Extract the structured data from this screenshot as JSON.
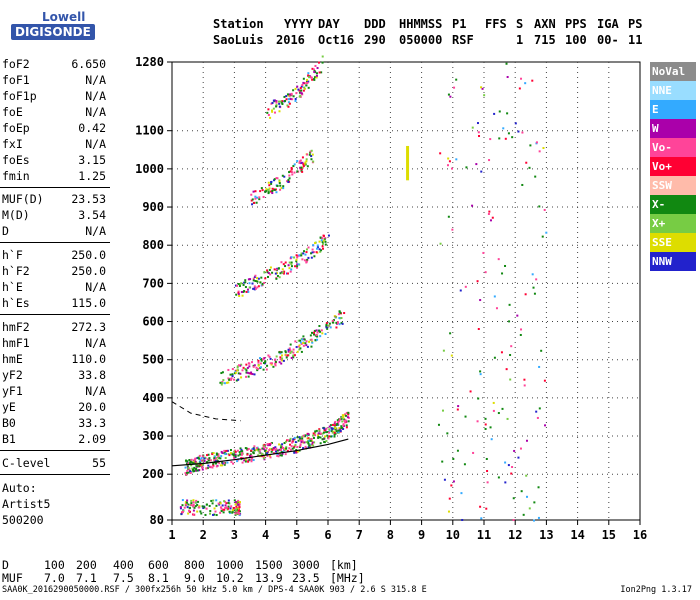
{
  "logo": {
    "top": "Lowell",
    "bottom": "DIGISONDE"
  },
  "header": {
    "labels": [
      "Station",
      "YYYY",
      "DAY",
      "DDD",
      "HHMMSS",
      "P1",
      "FFS",
      "S",
      "AXN",
      "PPS",
      "IGA",
      "PS"
    ],
    "values": [
      "SaoLuis",
      "2016",
      "Oct16",
      "290",
      "050000",
      "RSF",
      "1",
      "715",
      "100",
      "00-",
      "11"
    ]
  },
  "params": [
    {
      "name": "foF2",
      "value": "6.650"
    },
    {
      "name": "foF1",
      "value": "N/A"
    },
    {
      "name": "foF1p",
      "value": "N/A"
    },
    {
      "name": "foE",
      "value": "N/A"
    },
    {
      "name": "foEp",
      "value": "0.42"
    },
    {
      "name": "fxI",
      "value": "N/A"
    },
    {
      "name": "foEs",
      "value": "3.15"
    },
    {
      "name": "fmin",
      "value": "1.25"
    },
    {
      "name": "MUF(D)",
      "value": "23.53"
    },
    {
      "name": "M(D)",
      "value": "3.54"
    },
    {
      "name": "D",
      "value": "N/A"
    },
    {
      "name": "h`F",
      "value": "250.0"
    },
    {
      "name": "h`F2",
      "value": "250.0"
    },
    {
      "name": "h`E",
      "value": "N/A"
    },
    {
      "name": "h`Es",
      "value": "115.0"
    },
    {
      "name": "hmF2",
      "value": "272.3"
    },
    {
      "name": "hmF1",
      "value": "N/A"
    },
    {
      "name": "hmE",
      "value": "110.0"
    },
    {
      "name": "yF2",
      "value": "33.8"
    },
    {
      "name": "yF1",
      "value": "N/A"
    },
    {
      "name": "yE",
      "value": "20.0"
    },
    {
      "name": "B0",
      "value": "33.3"
    },
    {
      "name": "B1",
      "value": "2.09"
    }
  ],
  "clevel": {
    "name": "C-level",
    "value": "55"
  },
  "autoscale": [
    "Auto:",
    "Artist5",
    "500200"
  ],
  "legend": [
    {
      "label": "NoVal",
      "color": "#8c8c8c"
    },
    {
      "label": "NNE",
      "color": "#99ddff"
    },
    {
      "label": "E",
      "color": "#33aaff"
    },
    {
      "label": "W",
      "color": "#aa00aa"
    },
    {
      "label": "Vo-",
      "color": "#ff4499"
    },
    {
      "label": "Vo+",
      "color": "#ff0033"
    },
    {
      "label": "SSW",
      "color": "#ffbbaa"
    },
    {
      "label": "X-",
      "color": "#118811"
    },
    {
      "label": "X+",
      "color": "#77cc44"
    },
    {
      "label": "SSE",
      "color": "#dddd00"
    },
    {
      "label": "NNW",
      "color": "#2222cc"
    }
  ],
  "muf_table": {
    "d_label": "D",
    "d_values": [
      "100",
      "200",
      "400",
      "600",
      "800",
      "1000",
      "1500",
      "3000"
    ],
    "d_unit": "[km]",
    "muf_label": "MUF",
    "muf_values": [
      "7.0",
      "7.1",
      "7.5",
      "8.1",
      "9.0",
      "10.2",
      "13.9",
      "23.5"
    ],
    "muf_unit": "[MHz]"
  },
  "footer": "SAA0K_2016290050000.RSF / 300fx256h 50 kHz 5.0 km / DPS-4 SAA0K 903 / 2.6 S 315.8 E",
  "version": "Ion2Png 1.3.17",
  "chart_data": {
    "type": "scatter",
    "x": [
      1,
      2,
      3,
      4,
      5,
      6,
      7,
      8,
      9,
      10,
      11,
      12,
      13,
      14,
      15,
      16
    ],
    "xlim": [
      1,
      16
    ],
    "y_ticks": [
      80,
      200,
      300,
      400,
      500,
      600,
      700,
      800,
      900,
      1000,
      1100,
      1280
    ],
    "ylim": [
      80,
      1280
    ],
    "traces": [
      {
        "name": "F2 trace",
        "x": [
          1.4,
          2.0,
          3.0,
          4.0,
          5.0,
          6.0,
          6.65
        ],
        "y": [
          220,
          235,
          250,
          262,
          280,
          310,
          350
        ]
      },
      {
        "name": "Es trace",
        "x": [
          1.25,
          2.0,
          3.0,
          3.15
        ],
        "y": [
          115,
          115,
          115,
          115
        ]
      },
      {
        "name": "2F",
        "x": [
          2.5,
          3.5,
          4.5,
          5.5,
          6.5
        ],
        "y": [
          450,
          480,
          510,
          560,
          620
        ]
      },
      {
        "name": "3F",
        "x": [
          3.0,
          4.0,
          5.0,
          6.0
        ],
        "y": [
          680,
          720,
          760,
          820
        ]
      },
      {
        "name": "4F",
        "x": [
          3.5,
          4.5,
          5.5
        ],
        "y": [
          920,
          970,
          1040
        ]
      },
      {
        "name": "5F",
        "x": [
          4.0,
          5.0,
          5.8
        ],
        "y": [
          1150,
          1200,
          1280
        ]
      }
    ],
    "profile_line": {
      "x": [
        1.0,
        2.0,
        3.0,
        4.0,
        5.0,
        6.0,
        6.65
      ],
      "y": [
        222,
        228,
        238,
        250,
        262,
        278,
        292
      ]
    },
    "dashed_line": {
      "x": [
        1.0,
        1.6,
        2.4,
        3.2
      ],
      "y": [
        390,
        360,
        345,
        340
      ]
    },
    "vertical_marker": {
      "x": 8.55,
      "y": [
        970,
        1060
      ],
      "color": "#dddd00"
    }
  }
}
